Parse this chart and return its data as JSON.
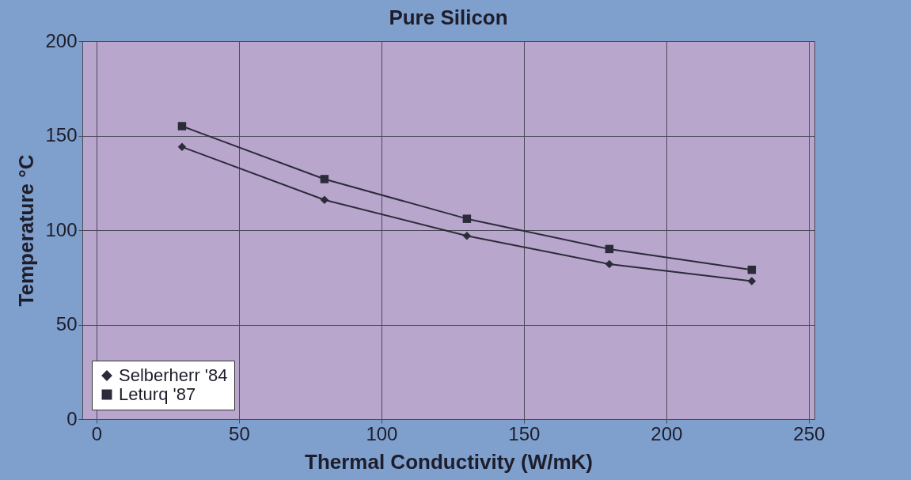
{
  "chart_data": {
    "type": "line",
    "title": "Pure Silicon",
    "xlabel": "Thermal Conductivity (W/mK)",
    "ylabel": "Temperature °C",
    "x": [
      30,
      80,
      130,
      180,
      230
    ],
    "series": [
      {
        "name": "Selberherr '84",
        "color": "#2b2b3a",
        "marker": "diamond",
        "values": [
          144,
          116,
          97,
          82,
          73
        ]
      },
      {
        "name": "Leturq '87",
        "color": "#2b2b3a",
        "marker": "square",
        "values": [
          155,
          127,
          106,
          90,
          79
        ]
      }
    ],
    "xlim": [
      -5,
      252
    ],
    "xticks": [
      0,
      50,
      100,
      150,
      200,
      250
    ],
    "ylim": [
      0,
      200
    ],
    "yticks": [
      0,
      50,
      100,
      150,
      200
    ],
    "grid": true,
    "legend": "bottom left",
    "line_style": "solid"
  }
}
